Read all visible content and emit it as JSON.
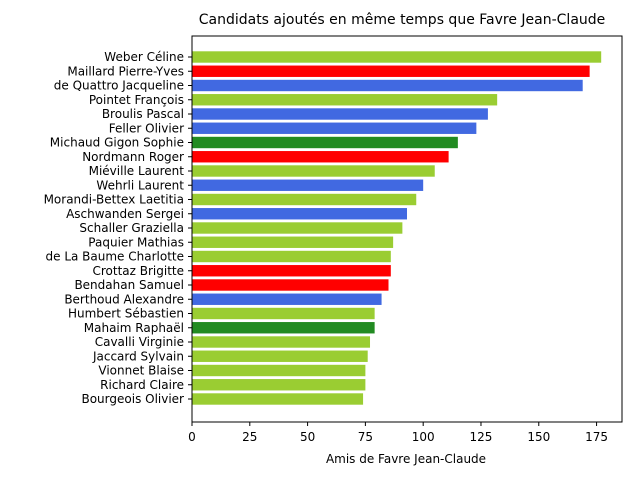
{
  "chart_data": {
    "type": "bar",
    "orientation": "horizontal",
    "title": "Candidats ajoutés en même temps que Favre Jean-Claude",
    "xlabel": "Amis de Favre Jean-Claude",
    "ylabel": "",
    "xlim": [
      0,
      186
    ],
    "xticks": [
      0,
      25,
      50,
      75,
      100,
      125,
      150,
      175
    ],
    "grid": false,
    "categories": [
      "Weber Céline",
      "Maillard Pierre-Yves",
      "de Quattro Jacqueline",
      "Pointet François",
      "Broulis Pascal",
      "Feller Olivier",
      "Michaud Gigon Sophie",
      "Nordmann Roger",
      "Miéville Laurent",
      "Wehrli Laurent",
      "Morandi-Bettex Laetitia",
      "Aschwanden Sergei",
      "Schaller Graziella",
      "Paquier Mathias",
      "de La Baume Charlotte",
      "Crottaz Brigitte",
      "Bendahan Samuel",
      "Berthoud Alexandre",
      "Humbert Sébastien",
      "Mahaim Raphaël",
      "Cavalli Virginie",
      "Jaccard Sylvain",
      "Vionnet Blaise",
      "Richard Claire",
      "Bourgeois Olivier"
    ],
    "values": [
      177,
      172,
      169,
      132,
      128,
      123,
      115,
      111,
      105,
      100,
      97,
      93,
      91,
      87,
      86,
      86,
      85,
      82,
      79,
      79,
      77,
      76,
      75,
      75,
      74
    ],
    "colors": [
      "#9acd32",
      "#ff0000",
      "#4169e1",
      "#9acd32",
      "#4169e1",
      "#4169e1",
      "#228b22",
      "#ff0000",
      "#9acd32",
      "#4169e1",
      "#9acd32",
      "#4169e1",
      "#9acd32",
      "#9acd32",
      "#9acd32",
      "#ff0000",
      "#ff0000",
      "#4169e1",
      "#9acd32",
      "#228b22",
      "#9acd32",
      "#9acd32",
      "#9acd32",
      "#9acd32",
      "#9acd32"
    ]
  }
}
